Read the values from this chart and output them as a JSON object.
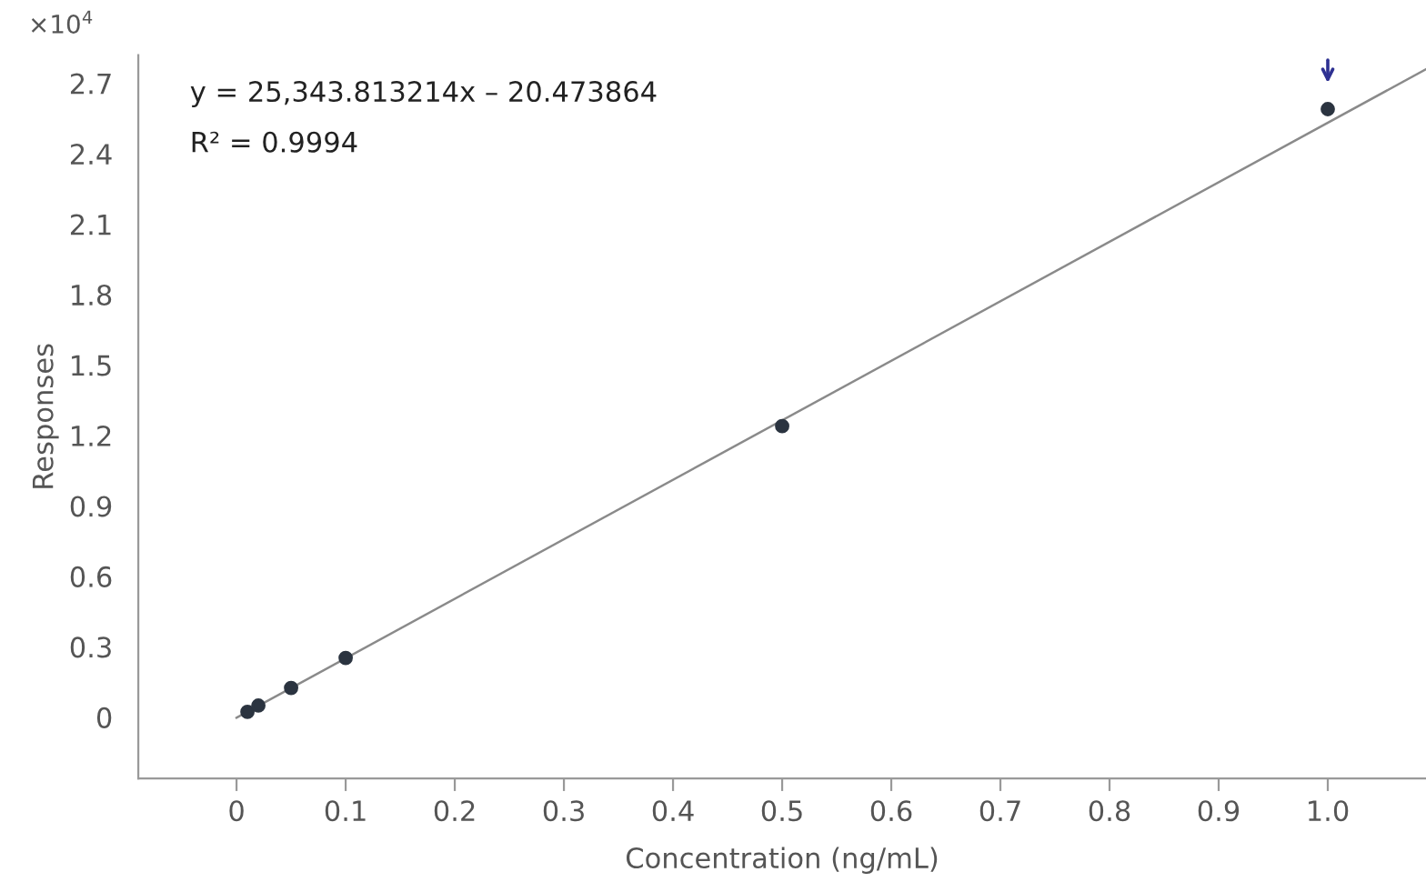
{
  "chart_data": {
    "type": "scatter",
    "xlabel": "Concentration (ng/mL)",
    "ylabel": "Responses",
    "series": [
      {
        "color": "#2b3440",
        "marker": "circle",
        "x": [
          0.01,
          0.02,
          0.05,
          0.1,
          0.5,
          1.0
        ],
        "values": [
          0.023,
          0.05,
          0.125,
          0.253,
          1.24,
          2.59
        ]
      },
      {
        "type": "line",
        "color": "#8a8a8a",
        "x": [
          0,
          1.09
        ],
        "values": [
          -0.002,
          2.76
        ]
      }
    ],
    "xlim": [
      -0.09,
      1.09
    ],
    "xticks": [
      0,
      0.1,
      0.2,
      0.3,
      0.4,
      0.5,
      0.6,
      0.7,
      0.8,
      0.9,
      {
        "value": 1.0,
        "label": "1.0"
      }
    ],
    "ylim": [
      -0.26,
      2.82
    ],
    "yticks": [
      0,
      0.3,
      0.6,
      0.9,
      1.2,
      1.5,
      1.8,
      2.1,
      2.4,
      2.7
    ],
    "annotations": [
      "×10$^{4}$",
      "y = 25,343.813214x – 20.473864",
      "R² = 0.9994"
    ],
    "grid": false,
    "legend": false
  }
}
